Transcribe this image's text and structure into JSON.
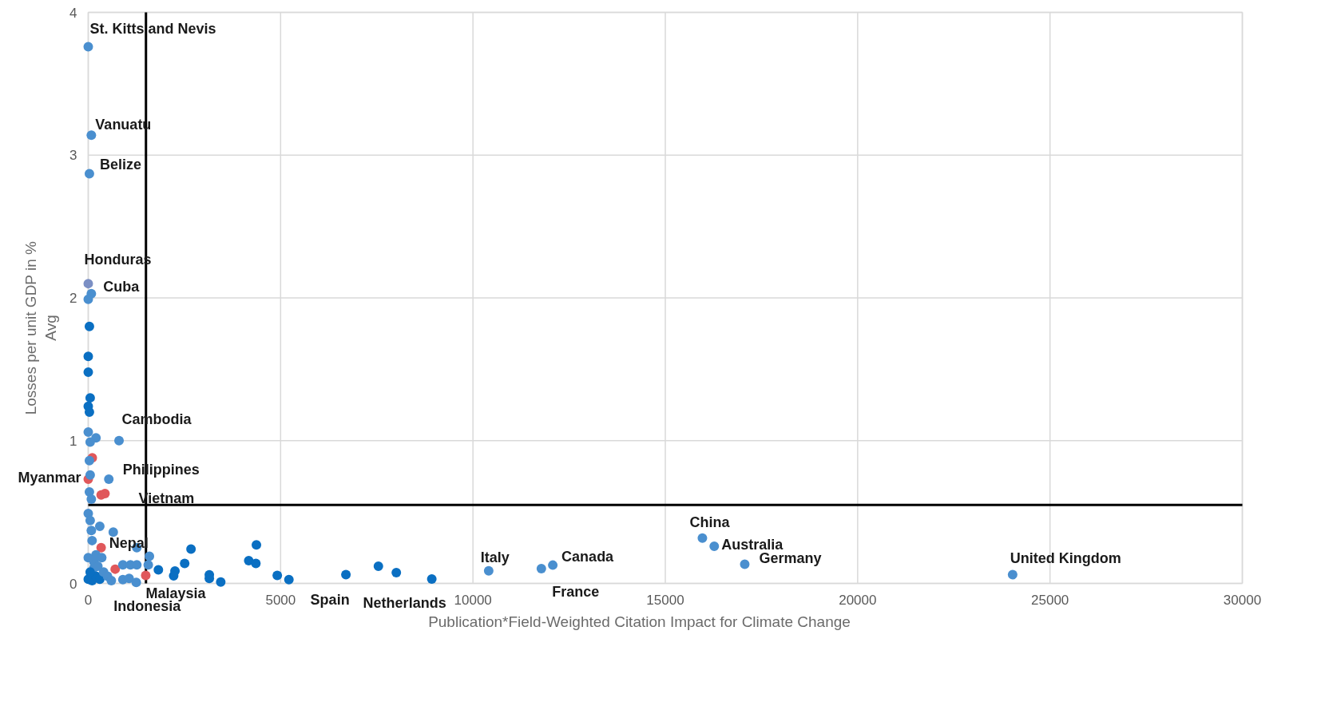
{
  "chart_data": {
    "type": "scatter",
    "xlabel": "Publication*Field-Weighted Citation Impact for Climate Change",
    "ylabel": "Losses per unit GDP in %\nAvg",
    "x": [
      0,
      80,
      30,
      0,
      80,
      0,
      30,
      0,
      0,
      50,
      0,
      30,
      0,
      200,
      50,
      800,
      105,
      30,
      0,
      50,
      535,
      335,
      435,
      30,
      80,
      0,
      50,
      300,
      650,
      80,
      100,
      335,
      1262,
      200,
      1590,
      150,
      700,
      900,
      1097,
      1262,
      1560,
      900,
      1063,
      1248,
      1494,
      1823,
      2254,
      2220,
      2506,
      2671,
      3147,
      3147,
      3444,
      4172,
      4357,
      4371,
      4913,
      5216,
      6698,
      7542,
      8008,
      8930,
      10409,
      11778,
      12075,
      15964,
      16272,
      17065,
      24028,
      0,
      100,
      200,
      50,
      300,
      150,
      400,
      250,
      500,
      0,
      600,
      350
    ],
    "values": [
      3.76,
      3.14,
      2.87,
      2.1,
      2.03,
      1.99,
      1.8,
      1.59,
      1.48,
      1.3,
      1.24,
      1.2,
      1.06,
      1.02,
      0.99,
      1.0,
      0.88,
      0.86,
      0.73,
      0.76,
      0.73,
      0.62,
      0.63,
      0.64,
      0.59,
      0.49,
      0.44,
      0.4,
      0.36,
      0.37,
      0.3,
      0.25,
      0.25,
      0.2,
      0.19,
      0.11,
      0.1,
      0.13,
      0.13,
      0.13,
      0.13,
      0.027,
      0.035,
      0.007,
      0.056,
      0.095,
      0.087,
      0.053,
      0.14,
      0.24,
      0.06,
      0.035,
      0.01,
      0.16,
      0.14,
      0.27,
      0.056,
      0.027,
      0.062,
      0.12,
      0.075,
      0.031,
      0.088,
      0.103,
      0.128,
      0.318,
      0.26,
      0.134,
      0.061,
      0.03,
      0.02,
      0.05,
      0.08,
      0.03,
      0.15,
      0.08,
      0.12,
      0.05,
      0.18,
      0.02,
      0.18
    ],
    "colors": [
      "#4a8fcf",
      "#4a8fcf",
      "#4a8fcf",
      "#7b8fc4",
      "#4a8fcf",
      "#4a8fcf",
      "#0a6fc2",
      "#0a6fc2",
      "#0a6fc2",
      "#0a6fc2",
      "#0a6fc2",
      "#0a6fc2",
      "#4a8fcf",
      "#4a8fcf",
      "#4a8fcf",
      "#4a8fcf",
      "#e0585b",
      "#4a8fcf",
      "#e0585b",
      "#4a8fcf",
      "#4a8fcf",
      "#e0585b",
      "#e0585b",
      "#4a8fcf",
      "#4a8fcf",
      "#4a8fcf",
      "#4a8fcf",
      "#4a8fcf",
      "#4a8fcf",
      "#4a8fcf",
      "#4a8fcf",
      "#e0585b",
      "#4a8fcf",
      "#4a8fcf",
      "#4a8fcf",
      "#4a8fcf",
      "#e0585b",
      "#4a8fcf",
      "#4a8fcf",
      "#4a8fcf",
      "#4a8fcf",
      "#4a8fcf",
      "#4a8fcf",
      "#4a8fcf",
      "#e0585b",
      "#0a6fc2",
      "#0a6fc2",
      "#0a6fc2",
      "#0a6fc2",
      "#0a6fc2",
      "#0a6fc2",
      "#0a6fc2",
      "#0a6fc2",
      "#0a6fc2",
      "#0a6fc2",
      "#0a6fc2",
      "#0a6fc2",
      "#0a6fc2",
      "#0a6fc2",
      "#0a6fc2",
      "#0a6fc2",
      "#0a6fc2",
      "#4a8fcf",
      "#4a8fcf",
      "#4a8fcf",
      "#4a8fcf",
      "#4a8fcf",
      "#4a8fcf",
      "#4a8fcf",
      "#0a6fc2",
      "#0a6fc2",
      "#0a6fc2",
      "#0a6fc2",
      "#0a6fc2",
      "#4a8fcf",
      "#4a8fcf",
      "#4a8fcf",
      "#4a8fcf",
      "#4a8fcf",
      "#4a8fcf",
      "#4a8fcf"
    ],
    "xlim": [
      0,
      30000
    ],
    "ylim": [
      0,
      4
    ],
    "xticks": [
      0,
      5000,
      10000,
      15000,
      20000,
      25000,
      30000
    ],
    "yticks": [
      0,
      1,
      2,
      3,
      4
    ],
    "grid": true,
    "legend": false,
    "marker": "circle",
    "ref_lines": [
      {
        "axis": "x",
        "value": 1500,
        "color": "#000000"
      },
      {
        "axis": "y",
        "value": 0.55,
        "color": "#000000"
      }
    ],
    "annotations": [
      {
        "text": "St. Kitts and Nevis",
        "x": 0,
        "y": 3.76
      },
      {
        "text": "Vanuatu",
        "x": 80,
        "y": 3.14
      },
      {
        "text": "Belize",
        "x": 30,
        "y": 2.87
      },
      {
        "text": "Honduras",
        "x": 0,
        "y": 2.1
      },
      {
        "text": "Cuba",
        "x": 80,
        "y": 2.03
      },
      {
        "text": "Cambodia",
        "x": 105,
        "y": 0.88
      },
      {
        "text": "Myanmar",
        "x": 0,
        "y": 0.73
      },
      {
        "text": "Philippines",
        "x": 335,
        "y": 0.62
      },
      {
        "text": "Vietnam",
        "x": 435,
        "y": 0.63
      },
      {
        "text": "Nepal",
        "x": 335,
        "y": 0.25
      },
      {
        "text": "Malaysia",
        "x": 1494,
        "y": 0.056
      },
      {
        "text": "Indonesia",
        "x": 700,
        "y": 0.1
      },
      {
        "text": "Spain",
        "x": 6698,
        "y": 0.062
      },
      {
        "text": "Netherlands",
        "x": 8930,
        "y": 0.031
      },
      {
        "text": "Italy",
        "x": 10409,
        "y": 0.088
      },
      {
        "text": "France",
        "x": 11778,
        "y": 0.103
      },
      {
        "text": "Canada",
        "x": 12075,
        "y": 0.128
      },
      {
        "text": "China",
        "x": 15964,
        "y": 0.318
      },
      {
        "text": "Australia",
        "x": 16272,
        "y": 0.26
      },
      {
        "text": "Germany",
        "x": 17065,
        "y": 0.134
      },
      {
        "text": "United Kingdom",
        "x": 24028,
        "y": 0.061
      }
    ]
  }
}
